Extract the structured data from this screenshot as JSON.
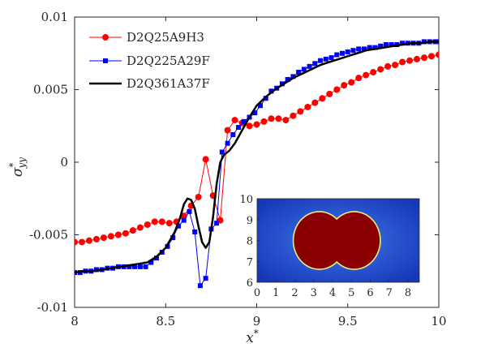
{
  "chart_data": {
    "type": "line",
    "xlabel": "x",
    "xlabel_sup": "*",
    "ylabel": "σ",
    "ylabel_sup": "*",
    "ylabel_sub": "yy",
    "xlim": [
      8,
      10
    ],
    "ylim": [
      -0.01,
      0.01
    ],
    "x_ticks": [
      "8",
      "8.5",
      "9",
      "9.5",
      "10"
    ],
    "x_tick_values": [
      8,
      8.5,
      9,
      9.5,
      10
    ],
    "y_ticks": [
      "-0.01",
      "-0.005",
      "0",
      "0.005",
      "0.01"
    ],
    "y_tick_values": [
      -0.01,
      -0.005,
      0,
      0.005,
      0.01
    ],
    "legend_position": "top-left",
    "series": [
      {
        "name": "D2Q25A9H3",
        "color": "#ff0000",
        "marker": "circle",
        "x": [
          8.0,
          8.04,
          8.08,
          8.12,
          8.16,
          8.2,
          8.24,
          8.28,
          8.32,
          8.36,
          8.4,
          8.44,
          8.48,
          8.52,
          8.56,
          8.6,
          8.64,
          8.68,
          8.72,
          8.76,
          8.8,
          8.84,
          8.88,
          8.92,
          8.96,
          9.0,
          9.04,
          9.08,
          9.12,
          9.16,
          9.2,
          9.24,
          9.28,
          9.32,
          9.36,
          9.4,
          9.44,
          9.48,
          9.52,
          9.56,
          9.6,
          9.64,
          9.68,
          9.72,
          9.76,
          9.8,
          9.84,
          9.88,
          9.92,
          9.96,
          10.0
        ],
        "y": [
          -0.0055,
          -0.0055,
          -0.0054,
          -0.0053,
          -0.0052,
          -0.0051,
          -0.005,
          -0.0049,
          -0.0047,
          -0.0045,
          -0.0043,
          -0.0041,
          -0.0041,
          -0.0042,
          -0.0041,
          -0.0037,
          -0.003,
          -0.0024,
          0.0002,
          -0.0023,
          -0.004,
          0.0022,
          0.0029,
          0.0027,
          0.0025,
          0.0026,
          0.0028,
          0.003,
          0.003,
          0.0029,
          0.0032,
          0.0035,
          0.0038,
          0.0041,
          0.0044,
          0.0047,
          0.005,
          0.0053,
          0.0055,
          0.0058,
          0.006,
          0.0062,
          0.0064,
          0.0066,
          0.0067,
          0.0069,
          0.007,
          0.0071,
          0.0072,
          0.0073,
          0.0074
        ]
      },
      {
        "name": "D2Q225A29F",
        "color": "#0000ff",
        "marker": "square",
        "x": [
          8.0,
          8.03,
          8.06,
          8.09,
          8.12,
          8.15,
          8.18,
          8.21,
          8.24,
          8.27,
          8.3,
          8.33,
          8.36,
          8.39,
          8.42,
          8.45,
          8.48,
          8.51,
          8.54,
          8.57,
          8.6,
          8.63,
          8.66,
          8.69,
          8.72,
          8.75,
          8.78,
          8.81,
          8.84,
          8.87,
          8.9,
          8.93,
          8.96,
          8.99,
          9.02,
          9.05,
          9.08,
          9.11,
          9.14,
          9.17,
          9.2,
          9.23,
          9.26,
          9.29,
          9.32,
          9.35,
          9.38,
          9.41,
          9.44,
          9.47,
          9.5,
          9.53,
          9.56,
          9.59,
          9.62,
          9.65,
          9.68,
          9.71,
          9.74,
          9.77,
          9.8,
          9.83,
          9.86,
          9.89,
          9.92,
          9.95,
          9.98,
          10.0
        ],
        "y": [
          -0.0076,
          -0.0076,
          -0.0075,
          -0.0075,
          -0.0074,
          -0.0074,
          -0.0073,
          -0.0073,
          -0.0072,
          -0.0072,
          -0.0072,
          -0.0072,
          -0.0072,
          -0.0072,
          -0.0069,
          -0.0066,
          -0.0062,
          -0.0058,
          -0.0052,
          -0.0044,
          -0.004,
          -0.0034,
          -0.0048,
          -0.0085,
          -0.008,
          -0.0046,
          -0.0042,
          0.0007,
          0.0013,
          0.0019,
          0.0024,
          0.0028,
          0.0031,
          0.0034,
          0.0039,
          0.0044,
          0.0049,
          0.0051,
          0.0054,
          0.0057,
          0.0059,
          0.0062,
          0.0064,
          0.0066,
          0.0068,
          0.007,
          0.0071,
          0.0072,
          0.0074,
          0.0075,
          0.0076,
          0.0077,
          0.0078,
          0.0078,
          0.0079,
          0.0079,
          0.008,
          0.0081,
          0.0081,
          0.0081,
          0.0082,
          0.0082,
          0.0082,
          0.0082,
          0.0083,
          0.0083,
          0.0083,
          0.0083
        ]
      },
      {
        "name": "D2Q361A37F",
        "color": "#000000",
        "marker": "none",
        "x": [
          8.0,
          8.05,
          8.1,
          8.15,
          8.2,
          8.25,
          8.3,
          8.35,
          8.4,
          8.45,
          8.5,
          8.55,
          8.58,
          8.6,
          8.62,
          8.64,
          8.66,
          8.68,
          8.7,
          8.72,
          8.74,
          8.76,
          8.78,
          8.8,
          8.82,
          8.85,
          8.88,
          8.92,
          8.96,
          9.0,
          9.05,
          9.1,
          9.15,
          9.2,
          9.25,
          9.3,
          9.35,
          9.4,
          9.45,
          9.5,
          9.55,
          9.6,
          9.65,
          9.7,
          9.75,
          9.8,
          9.85,
          9.9,
          9.95,
          10.0
        ],
        "y": [
          -0.0076,
          -0.0075,
          -0.0075,
          -0.0074,
          -0.0073,
          -0.0072,
          -0.0071,
          -0.007,
          -0.0069,
          -0.0065,
          -0.0059,
          -0.0048,
          -0.0038,
          -0.0029,
          -0.0025,
          -0.0026,
          -0.0032,
          -0.0044,
          -0.0055,
          -0.0059,
          -0.0055,
          -0.0038,
          -0.0015,
          0.0,
          0.0005,
          0.0008,
          0.0013,
          0.0022,
          0.0031,
          0.0039,
          0.0045,
          0.005,
          0.0054,
          0.0058,
          0.0061,
          0.0064,
          0.0067,
          0.0069,
          0.0071,
          0.0073,
          0.0075,
          0.0077,
          0.0078,
          0.0079,
          0.008,
          0.0081,
          0.0082,
          0.0082,
          0.0083,
          0.0083
        ]
      }
    ],
    "inset": {
      "type": "heatmap",
      "xlim": [
        0,
        8.6
      ],
      "ylim": [
        6,
        10
      ],
      "x_ticks": [
        "0",
        "1",
        "2",
        "3",
        "4",
        "5",
        "6",
        "7",
        "8"
      ],
      "x_tick_values": [
        0,
        1,
        2,
        3,
        4,
        5,
        6,
        7,
        8
      ],
      "y_ticks": [
        "10",
        "9",
        "8",
        "7",
        "6"
      ],
      "y_tick_values": [
        10,
        9,
        8,
        7,
        6
      ],
      "background_color": "#1f42c9",
      "droplet_color": "#8a0000",
      "droplet_rim_color": "#e9f07a",
      "droplets": [
        {
          "cx": 3.3,
          "cy": 8.0,
          "r": 1.35
        },
        {
          "cx": 5.15,
          "cy": 8.0,
          "r": 1.35
        }
      ]
    }
  }
}
